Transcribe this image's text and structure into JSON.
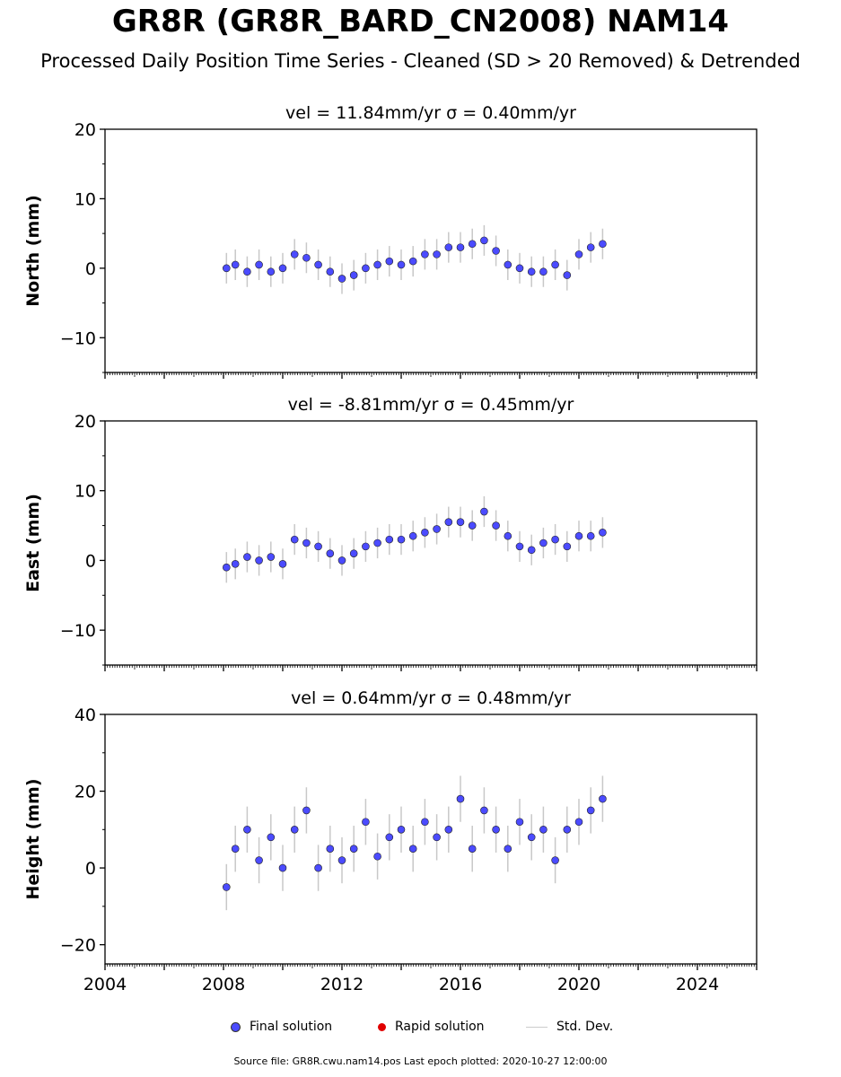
{
  "title": "GR8R (GR8R_BARD_CN2008) NAM14",
  "subtitle": "Processed Daily Position Time Series - Cleaned (SD > 20 Removed) & Detrended",
  "legend": {
    "final": "Final solution",
    "rapid": "Rapid solution",
    "std": "Std. Dev."
  },
  "footer": "Source file: GR8R.cwu.nam14.pos  Last epoch plotted: 2020-10-27 12:00:00",
  "colors": {
    "final": "#4b4bff",
    "rapid": "#e00000",
    "std": "#c8c8c8"
  },
  "chart_data": [
    {
      "type": "scatter",
      "title": "vel = 11.84mm/yr   σ = 0.40mm/yr",
      "ylabel": "North (mm)",
      "xlim": [
        2004,
        2026
      ],
      "ylim": [
        -15,
        20
      ],
      "yticks": [
        -10,
        0,
        10,
        20
      ],
      "ytick_labels": [
        "−10",
        "0",
        "10",
        "20"
      ],
      "series": [
        {
          "name": "Final solution",
          "x": [
            2008.1,
            2008.4,
            2008.8,
            2009.2,
            2009.6,
            2010.0,
            2010.4,
            2010.8,
            2011.2,
            2011.6,
            2012.0,
            2012.4,
            2012.8,
            2013.2,
            2013.6,
            2014.0,
            2014.4,
            2014.8,
            2015.2,
            2015.6,
            2016.0,
            2016.4,
            2016.8,
            2017.2,
            2017.6,
            2018.0,
            2018.4,
            2018.8,
            2019.2,
            2019.6,
            2020.0,
            2020.4,
            2020.8
          ],
          "y": [
            0.0,
            0.5,
            -0.5,
            0.5,
            -0.5,
            0.0,
            2.0,
            1.5,
            0.5,
            -0.5,
            -1.5,
            -1.0,
            0.0,
            0.5,
            1.0,
            0.5,
            1.0,
            2.0,
            2.0,
            3.0,
            3.0,
            3.5,
            4.0,
            2.5,
            0.5,
            0.0,
            -0.5,
            -0.5,
            0.5,
            -1.0,
            2.0,
            3.0,
            3.5
          ]
        }
      ]
    },
    {
      "type": "scatter",
      "title": "vel = -8.81mm/yr   σ = 0.45mm/yr",
      "ylabel": "East (mm)",
      "xlim": [
        2004,
        2026
      ],
      "ylim": [
        -15,
        20
      ],
      "yticks": [
        -10,
        0,
        10,
        20
      ],
      "ytick_labels": [
        "−10",
        "0",
        "10",
        "20"
      ],
      "series": [
        {
          "name": "Final solution",
          "x": [
            2008.1,
            2008.4,
            2008.8,
            2009.2,
            2009.6,
            2010.0,
            2010.4,
            2010.8,
            2011.2,
            2011.6,
            2012.0,
            2012.4,
            2012.8,
            2013.2,
            2013.6,
            2014.0,
            2014.4,
            2014.8,
            2015.2,
            2015.6,
            2016.0,
            2016.4,
            2016.8,
            2017.2,
            2017.6,
            2018.0,
            2018.4,
            2018.8,
            2019.2,
            2019.6,
            2020.0,
            2020.4,
            2020.8
          ],
          "y": [
            -1.0,
            -0.5,
            0.5,
            0.0,
            0.5,
            -0.5,
            3.0,
            2.5,
            2.0,
            1.0,
            0.0,
            1.0,
            2.0,
            2.5,
            3.0,
            3.0,
            3.5,
            4.0,
            4.5,
            5.5,
            5.5,
            5.0,
            7.0,
            5.0,
            3.5,
            2.0,
            1.5,
            2.5,
            3.0,
            2.0,
            3.5,
            3.5,
            4.0
          ]
        }
      ]
    },
    {
      "type": "scatter",
      "title": "vel = 0.64mm/yr   σ = 0.48mm/yr",
      "ylabel": "Height (mm)",
      "xlim": [
        2004,
        2026
      ],
      "ylim": [
        -25,
        40
      ],
      "yticks": [
        -20,
        0,
        20,
        40
      ],
      "ytick_labels": [
        "−20",
        "0",
        "20",
        "40"
      ],
      "xticks": [
        2004,
        2008,
        2012,
        2016,
        2020,
        2024
      ],
      "xtick_labels": [
        "2004",
        "2008",
        "2012",
        "2016",
        "2020",
        "2024"
      ],
      "series": [
        {
          "name": "Final solution",
          "x": [
            2008.1,
            2008.4,
            2008.8,
            2009.2,
            2009.6,
            2010.0,
            2010.4,
            2010.8,
            2011.2,
            2011.6,
            2012.0,
            2012.4,
            2012.8,
            2013.2,
            2013.6,
            2014.0,
            2014.4,
            2014.8,
            2015.2,
            2015.6,
            2016.0,
            2016.4,
            2016.8,
            2017.2,
            2017.6,
            2018.0,
            2018.4,
            2018.8,
            2019.2,
            2019.6,
            2020.0,
            2020.4,
            2020.8
          ],
          "y": [
            -5,
            5,
            10,
            2,
            8,
            0,
            10,
            15,
            0,
            5,
            2,
            5,
            12,
            3,
            8,
            10,
            5,
            12,
            8,
            10,
            18,
            5,
            15,
            10,
            5,
            12,
            8,
            10,
            2,
            10,
            12,
            15,
            18
          ]
        }
      ]
    }
  ]
}
